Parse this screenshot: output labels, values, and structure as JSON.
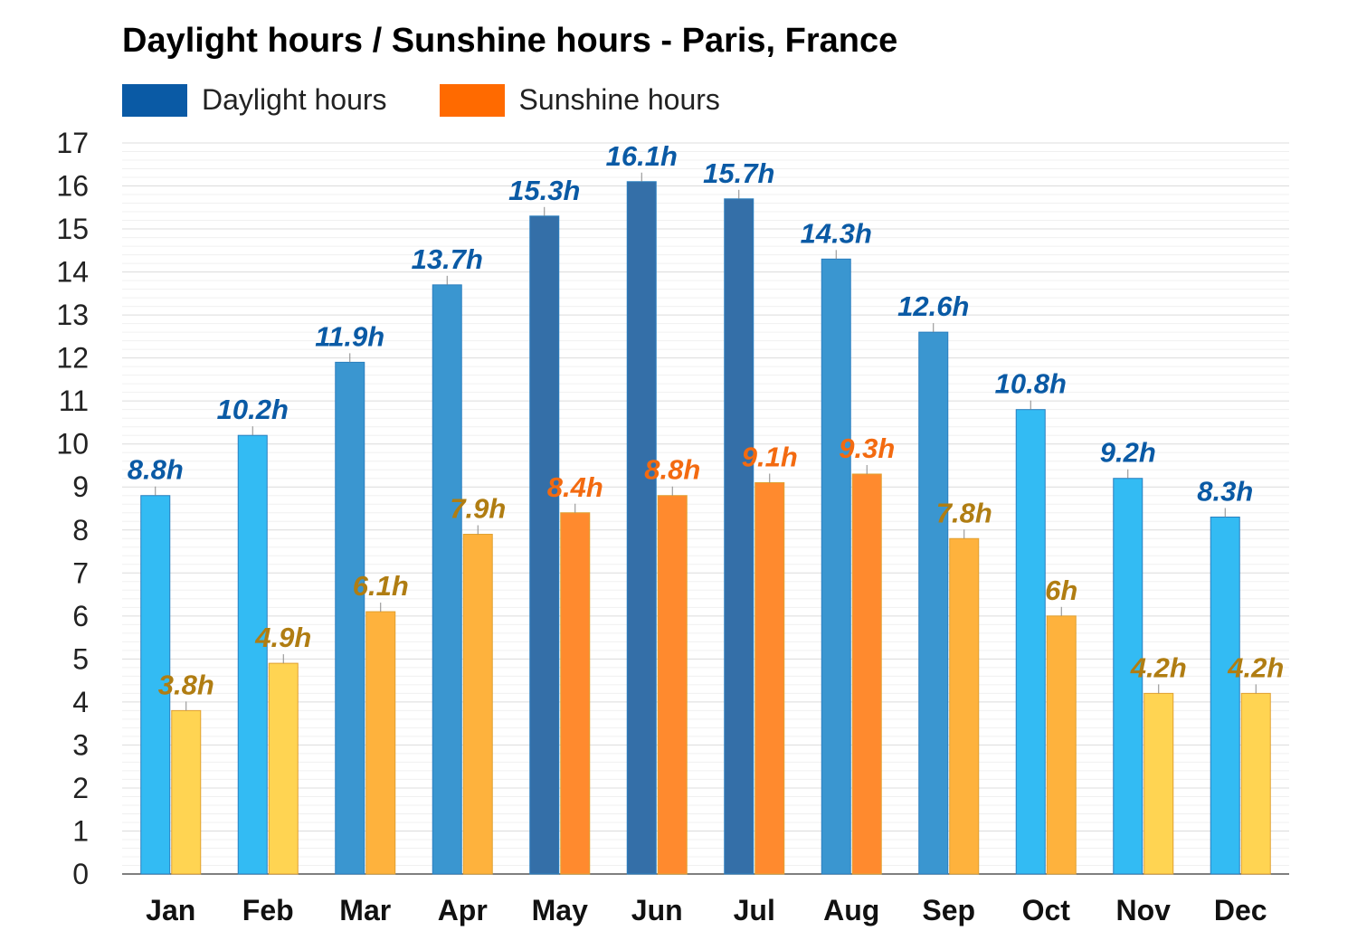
{
  "chart_data": {
    "type": "bar",
    "title": "Daylight hours / Sunshine hours - Paris, France",
    "categories": [
      "Jan",
      "Feb",
      "Mar",
      "Apr",
      "May",
      "Jun",
      "Jul",
      "Aug",
      "Sep",
      "Oct",
      "Nov",
      "Dec"
    ],
    "series": [
      {
        "name": "Daylight hours",
        "values": [
          8.8,
          10.2,
          11.9,
          13.7,
          15.3,
          16.1,
          15.7,
          14.3,
          12.6,
          10.8,
          9.2,
          8.3
        ],
        "labels": [
          "8.8h",
          "10.2h",
          "11.9h",
          "13.7h",
          "15.3h",
          "16.1h",
          "15.7h",
          "14.3h",
          "12.6h",
          "10.8h",
          "9.2h",
          "8.3h"
        ]
      },
      {
        "name": "Sunshine hours",
        "values": [
          3.8,
          4.9,
          6.1,
          7.9,
          8.4,
          8.8,
          9.1,
          9.3,
          7.8,
          6,
          4.2,
          4.2
        ],
        "labels": [
          "3.8h",
          "4.9h",
          "6.1h",
          "7.9h",
          "8.4h",
          "8.8h",
          "9.1h",
          "9.3h",
          "7.8h",
          "6h",
          "4.2h",
          "4.2h"
        ]
      }
    ],
    "ylim": [
      0,
      17
    ],
    "yticks": [
      "0",
      "1",
      "2",
      "3",
      "4",
      "5",
      "6",
      "7",
      "8",
      "9",
      "10",
      "11",
      "12",
      "13",
      "14",
      "15",
      "16",
      "17"
    ],
    "grid": true,
    "legend_position": "top-left",
    "colors": {
      "legend_daylight": "#0a5aa5",
      "legend_sunshine": "#ff6a00",
      "daylight_light": "#33bbf3",
      "daylight_mid": "#3a96d0",
      "daylight_dark": "#346fa8",
      "sunshine_light": "#ffd452",
      "sunshine_mid": "#feb23d",
      "sunshine_dark": "#ff8a2e",
      "label_blue": "#0a5aa5",
      "label_gold": "#b07d12",
      "label_orange": "#f36a10"
    }
  }
}
